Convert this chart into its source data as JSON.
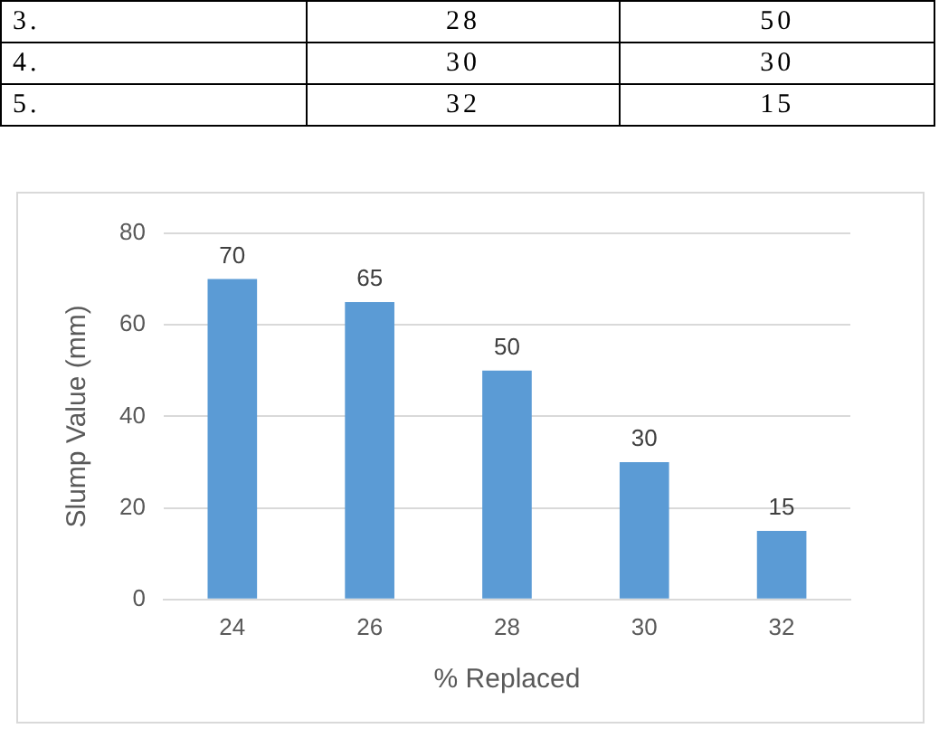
{
  "chart_data": [
    {
      "type": "other",
      "annotations": [
        "3.",
        "28",
        "50",
        "4.",
        "30",
        "30",
        "5.",
        "32",
        "15"
      ]
    },
    {
      "type": "bar",
      "xlabel": "% Replaced",
      "ylabel": "Slump Value (mm)",
      "categories": [
        "24",
        "26",
        "28",
        "30",
        "32"
      ],
      "values": [
        70,
        65,
        50,
        30,
        15
      ],
      "color": "#5b9bd5",
      "ylim": [
        0,
        80
      ],
      "yticks": [
        0,
        20,
        40,
        60,
        80
      ],
      "grid": "y",
      "data_labels": true,
      "legend": false
    }
  ]
}
